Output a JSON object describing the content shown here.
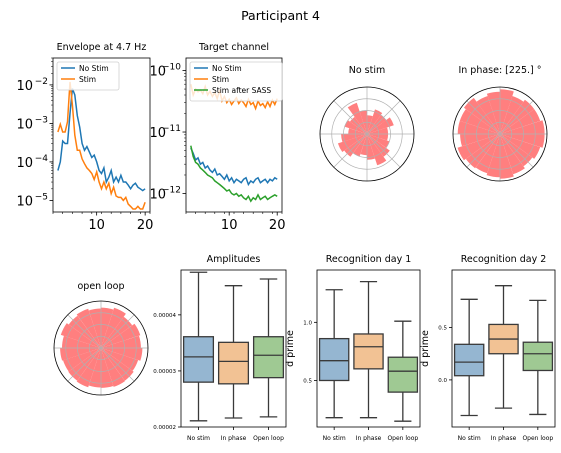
{
  "figure": {
    "suptitle": "Participant 4"
  },
  "colors": {
    "blue": "#1f77b4",
    "orange": "#ff7f0e",
    "green": "#2ca02c",
    "polar_fill": "#ff7f7f",
    "polar_grid": "#b0b0b0",
    "box_blue": "#95b6d1",
    "box_orange": "#f2c294",
    "box_green": "#9fc993"
  },
  "chart_data": [
    {
      "id": "envelope",
      "type": "line",
      "title": "Envelope at 4.7 Hz",
      "xlabel": "",
      "ylabel": "",
      "yscale": "log",
      "xlim": [
        1,
        21
      ],
      "ylim": [
        5e-06,
        0.05
      ],
      "xticks": [
        10,
        20
      ],
      "xtick_labels": [
        "10",
        "20"
      ],
      "yticks": [
        1e-05,
        0.0001,
        0.001,
        0.01
      ],
      "ytick_labels": [
        "10",
        "10",
        "10",
        "10"
      ],
      "ytick_exponents": [
        "−5",
        "−4",
        "−3",
        "−2"
      ],
      "legend_position": "upper left",
      "series": [
        {
          "name": "No Stim",
          "color": "blue",
          "x": [
            2,
            2.5,
            3,
            3.5,
            4,
            4.5,
            5,
            5.5,
            6,
            6.5,
            7,
            7.5,
            8,
            8.5,
            9,
            9.5,
            10,
            10.5,
            11,
            11.5,
            12,
            12.5,
            13,
            13.5,
            14,
            14.5,
            15,
            15.5,
            16,
            16.5,
            17,
            17.5,
            18,
            18.5,
            19,
            19.5,
            20
          ],
          "y": [
            6e-05,
            0.0001,
            0.00035,
            0.0003,
            0.0003,
            0.0018,
            0.008,
            0.0055,
            0.0016,
            0.0008,
            0.0003,
            0.0002,
            0.00025,
            0.00018,
            0.00013,
            0.00015,
            0.0001,
            6e-05,
            5e-05,
            7e-05,
            3e-05,
            4e-05,
            6e-05,
            3e-05,
            4e-05,
            3e-05,
            4.5e-05,
            3e-05,
            3e-05,
            2.5e-05,
            2e-05,
            2.5e-05,
            2.8e-05,
            2.2e-05,
            2e-05,
            1.8e-05,
            2e-05
          ]
        },
        {
          "name": "Stim",
          "color": "orange",
          "x": [
            2,
            2.5,
            3,
            3.5,
            4,
            4.5,
            5,
            5.5,
            6,
            6.5,
            7,
            7.5,
            8,
            8.5,
            9,
            9.5,
            10,
            10.5,
            11,
            11.5,
            12,
            12.5,
            13,
            13.5,
            14,
            14.5,
            15,
            15.5,
            16,
            16.5,
            17,
            17.5,
            18,
            18.5,
            19,
            19.5,
            20
          ],
          "y": [
            0.0006,
            0.00095,
            0.0006,
            0.0006,
            0.0011,
            0.012,
            0.003,
            0.0005,
            0.0002,
            0.0002,
            0.00012,
            9e-05,
            7e-05,
            6e-05,
            5e-05,
            3.5e-05,
            5.5e-05,
            3e-05,
            2e-05,
            3e-05,
            2e-05,
            2.8e-05,
            1.5e-05,
            2.2e-05,
            1.3e-05,
            1.2e-05,
            1.2e-05,
            1e-05,
            1.2e-05,
            8e-06,
            7e-06,
            6e-06,
            6e-06,
            7e-06,
            6e-06,
            6e-06,
            9e-06
          ]
        }
      ]
    },
    {
      "id": "target",
      "type": "line",
      "title": "Target channel",
      "xlabel": "",
      "ylabel": "",
      "yscale": "log",
      "xlim": [
        1,
        21
      ],
      "ylim": [
        5e-13,
        1.6e-10
      ],
      "xticks": [
        10,
        20
      ],
      "xtick_labels": [
        "10",
        "20"
      ],
      "yticks": [
        1e-12,
        1e-11,
        1e-10
      ],
      "ytick_labels": [
        "10",
        "10",
        "10"
      ],
      "ytick_exponents": [
        "−12",
        "−11",
        "−10"
      ],
      "legend_position": "upper left",
      "series": [
        {
          "name": "No Stim",
          "color": "blue",
          "x": [
            2,
            2.5,
            3,
            3.5,
            4,
            4.5,
            5,
            5.5,
            6,
            6.5,
            7,
            7.5,
            8,
            8.5,
            9,
            9.5,
            10,
            10.5,
            11,
            11.5,
            12,
            12.5,
            13,
            13.5,
            14,
            14.5,
            15,
            15.5,
            16,
            16.5,
            17,
            17.5,
            18,
            18.5,
            19,
            19.5,
            20
          ],
          "y": [
            5.5e-12,
            4.5e-12,
            3.5e-12,
            3.8e-12,
            3e-12,
            3.2e-12,
            2.6e-12,
            2.8e-12,
            2.4e-12,
            2.2e-12,
            2.5e-12,
            2e-12,
            2.1e-12,
            1.9e-12,
            1.7e-12,
            2e-12,
            1.6e-12,
            1.8e-12,
            1.5e-12,
            1.7e-12,
            1.6e-12,
            1.5e-12,
            1.7e-12,
            1.8e-12,
            1.4e-12,
            1.6e-12,
            1.5e-12,
            1.7e-12,
            1.8e-12,
            1.5e-12,
            1.6e-12,
            1.7e-12,
            1.5e-12,
            1.7e-12,
            1.6e-12,
            1.8e-12,
            1.7e-12
          ]
        },
        {
          "name": "Stim",
          "color": "orange",
          "x": [
            2,
            2.5,
            3,
            3.5,
            4,
            4.5,
            5,
            5.5,
            6,
            6.5,
            7,
            7.5,
            8,
            8.5,
            9,
            9.5,
            10,
            10.5,
            11,
            11.5,
            12,
            12.5,
            13,
            13.5,
            14,
            14.5,
            15,
            15.5,
            16,
            16.5,
            17,
            17.5,
            18,
            18.5,
            19,
            19.5,
            20
          ],
          "y": [
            6e-11,
            4e-11,
            5e-11,
            4.5e-11,
            4.8e-11,
            4.2e-11,
            5.5e-11,
            4e-11,
            4.6e-11,
            3.8e-11,
            4.4e-11,
            3.5e-11,
            4.8e-11,
            3.2e-11,
            3.8e-11,
            3e-11,
            3.4e-11,
            2.8e-11,
            3.2e-11,
            3.6e-11,
            2.9e-11,
            3.3e-11,
            3e-11,
            2.6e-11,
            3.4e-11,
            2.8e-11,
            3e-11,
            2.4e-11,
            3.2e-11,
            2.7e-11,
            2.9e-11,
            2.5e-11,
            3.1e-11,
            2.6e-11,
            3.3e-11,
            2.8e-11,
            3.5e-11
          ]
        },
        {
          "name": "Stim after SASS",
          "color": "green",
          "x": [
            2,
            2.5,
            3,
            3.5,
            4,
            4.5,
            5,
            5.5,
            6,
            6.5,
            7,
            7.5,
            8,
            8.5,
            9,
            9.5,
            10,
            10.5,
            11,
            11.5,
            12,
            12.5,
            13,
            13.5,
            14,
            14.5,
            15,
            15.5,
            16,
            16.5,
            17,
            17.5,
            18,
            18.5,
            19,
            19.5,
            20
          ],
          "y": [
            6e-12,
            4e-12,
            3.2e-12,
            3e-12,
            2.6e-12,
            2.4e-12,
            2.2e-12,
            2e-12,
            1.9e-12,
            1.8e-12,
            1.6e-12,
            1.5e-12,
            1.4e-12,
            1.3e-12,
            1.2e-12,
            1.1e-12,
            1.15e-12,
            1e-12,
            9.5e-13,
            1e-12,
            9e-13,
            9.5e-13,
            8.5e-13,
            8e-13,
            9e-13,
            7.5e-13,
            8.5e-13,
            8e-13,
            9.5e-13,
            8e-13,
            8.5e-13,
            9e-13,
            8e-13,
            8.5e-13,
            9e-13,
            9.5e-13,
            9e-13
          ]
        }
      ]
    },
    {
      "id": "polar-nostim",
      "type": "polar-histogram",
      "title": "No stim",
      "rmax": 1,
      "bin_values": [
        0.45,
        0.6,
        0.5,
        0.55,
        0.4,
        0.5,
        0.7,
        0.45,
        0.5,
        0.4,
        0.55,
        0.65,
        0.6,
        0.5,
        0.45,
        0.55,
        0.7,
        0.6,
        0.5,
        0.45
      ]
    },
    {
      "id": "polar-inphase",
      "type": "polar-histogram",
      "title": "In phase: [225.] °",
      "rmax": 1,
      "bin_values": [
        0.95,
        0.9,
        0.9,
        0.85,
        0.95,
        0.9,
        0.85,
        0.95,
        0.9,
        0.9,
        0.85,
        0.95,
        0.9,
        0.88,
        0.92,
        0.95,
        0.9,
        0.85,
        0.9,
        0.95
      ]
    },
    {
      "id": "polar-openloop",
      "type": "polar-histogram",
      "title": "open loop",
      "rmax": 1,
      "bin_values": [
        0.85,
        0.88,
        0.82,
        0.9,
        0.86,
        0.84,
        0.88,
        0.85,
        0.9,
        0.83,
        0.87,
        0.85,
        0.86,
        0.88,
        0.84,
        0.85,
        0.87,
        0.86,
        0.83,
        0.88
      ]
    },
    {
      "id": "amplitudes",
      "type": "box",
      "title": "Amplitudes",
      "ylabel": "",
      "ylim": [
        2e-05,
        4.8e-05
      ],
      "yticks": [
        2e-05,
        3e-05,
        4e-05
      ],
      "ytick_labels": [
        "0.00002",
        "0.00003",
        "0.00004"
      ],
      "categories": [
        "No stim",
        "In phase",
        "Open loop"
      ],
      "boxes": [
        {
          "color": "box_blue",
          "whislo": 2.11e-05,
          "q1": 2.8e-05,
          "med": 3.25e-05,
          "q3": 3.61e-05,
          "whishi": 4.76e-05
        },
        {
          "color": "box_orange",
          "whislo": 2.16e-05,
          "q1": 2.77e-05,
          "med": 3.17e-05,
          "q3": 3.51e-05,
          "whishi": 4.52e-05
        },
        {
          "color": "box_green",
          "whislo": 2.18e-05,
          "q1": 2.88e-05,
          "med": 3.28e-05,
          "q3": 3.61e-05,
          "whishi": 4.64e-05
        }
      ]
    },
    {
      "id": "recog1",
      "type": "box",
      "title": "Recognition day 1",
      "ylabel": "d prime",
      "ylim": [
        0.1,
        1.45
      ],
      "yticks": [
        0.5,
        1.0
      ],
      "ytick_labels": [
        "0.5",
        "1.0"
      ],
      "categories": [
        "No stim",
        "In phase",
        "Open loop"
      ],
      "boxes": [
        {
          "color": "box_blue",
          "whislo": 0.18,
          "q1": 0.5,
          "med": 0.67,
          "q3": 0.86,
          "whishi": 1.28
        },
        {
          "color": "box_orange",
          "whislo": 0.18,
          "q1": 0.6,
          "med": 0.79,
          "q3": 0.9,
          "whishi": 1.35
        },
        {
          "color": "box_green",
          "whislo": 0.15,
          "q1": 0.4,
          "med": 0.58,
          "q3": 0.7,
          "whishi": 1.01
        }
      ]
    },
    {
      "id": "recog2",
      "type": "box",
      "title": "Recognition day 2",
      "ylabel": "d prime",
      "ylim": [
        -0.45,
        1.05
      ],
      "yticks": [
        0.0,
        0.5
      ],
      "ytick_labels": [
        "0.0",
        "0.5"
      ],
      "categories": [
        "No stim",
        "In phase",
        "Open loop"
      ],
      "boxes": [
        {
          "color": "box_blue",
          "whislo": -0.34,
          "q1": 0.04,
          "med": 0.17,
          "q3": 0.34,
          "whishi": 0.77
        },
        {
          "color": "box_orange",
          "whislo": -0.27,
          "q1": 0.25,
          "med": 0.39,
          "q3": 0.53,
          "whishi": 0.9
        },
        {
          "color": "box_green",
          "whislo": -0.33,
          "q1": 0.09,
          "med": 0.25,
          "q3": 0.36,
          "whishi": 0.76
        }
      ]
    }
  ]
}
